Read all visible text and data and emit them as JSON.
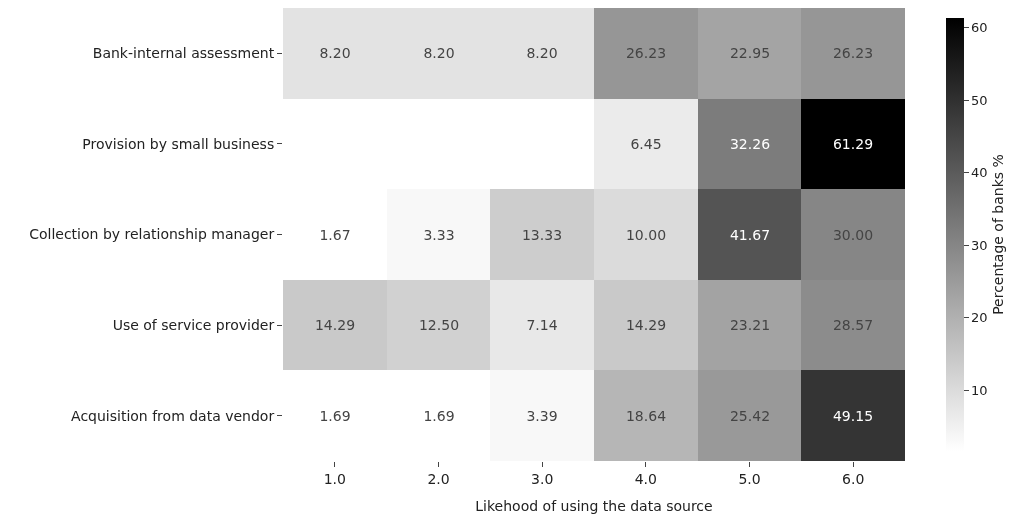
{
  "chart_data": {
    "type": "heatmap",
    "xlabel": "Likehood of using the data source",
    "clabel": "Percentage of banks %",
    "categories": [
      "1.0",
      "2.0",
      "3.0",
      "4.0",
      "5.0",
      "6.0"
    ],
    "y_categories": [
      "Bank-internal assessment",
      "Provision by small business",
      "Collection by relationship manager",
      "Use of service provider",
      "Acquisition from data vendor"
    ],
    "cells": [
      [
        8.2,
        8.2,
        8.2,
        26.23,
        22.95,
        26.23
      ],
      [
        null,
        null,
        null,
        6.45,
        32.26,
        61.29
      ],
      [
        1.67,
        3.33,
        13.33,
        10.0,
        41.67,
        30.0
      ],
      [
        14.29,
        12.5,
        7.14,
        14.29,
        23.21,
        28.57
      ],
      [
        1.69,
        1.69,
        3.39,
        18.64,
        25.42,
        49.15
      ]
    ],
    "cell_labels": [
      [
        "8.20",
        "8.20",
        "8.20",
        "26.23",
        "22.95",
        "26.23"
      ],
      [
        null,
        null,
        null,
        "6.45",
        "32.26",
        "61.29"
      ],
      [
        "1.67",
        "3.33",
        "13.33",
        "10.00",
        "41.67",
        "30.00"
      ],
      [
        "14.29",
        "12.50",
        "7.14",
        "14.29",
        "23.21",
        "28.57"
      ],
      [
        "1.69",
        "1.69",
        "3.39",
        "18.64",
        "25.42",
        "49.15"
      ]
    ],
    "clim": [
      1.67,
      61.29
    ],
    "cticks": [
      10,
      20,
      30,
      40,
      50,
      60
    ]
  }
}
